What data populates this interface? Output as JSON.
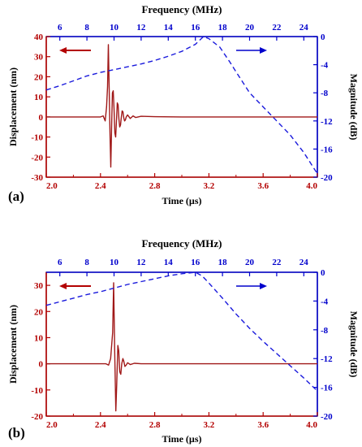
{
  "colors": {
    "time_axis": "#b30000",
    "frequency_axis": "#0000cc",
    "displacement_line": "#a01818",
    "magnitude_line": "#1a1adc",
    "frame": "#000000"
  },
  "chart_data": [
    {
      "type": "line",
      "panel_label": "(a)",
      "title": "",
      "xlabel": "Time (µs)",
      "x2label": "Frequency (MHz)",
      "ylabel": "Displacement (nm)",
      "y2label": "Magnitude (dB)",
      "xlim": [
        2.0,
        4.0
      ],
      "x2lim": [
        5,
        25
      ],
      "ylim": [
        -30,
        40
      ],
      "y2lim": [
        -20,
        0
      ],
      "x_ticks": [
        "2.0",
        "2.4",
        "2.8",
        "3.2",
        "3.6",
        "4.0"
      ],
      "x2_ticks": [
        "6",
        "8",
        "10",
        "12",
        "14",
        "16",
        "18",
        "20",
        "22",
        "24"
      ],
      "y_ticks": [
        "-30",
        "-20",
        "-10",
        "0",
        "10",
        "20",
        "30",
        "40"
      ],
      "y2_ticks": [
        "-20",
        "-16",
        "-12",
        "-8",
        "-4",
        "0"
      ],
      "legend_arrows": [
        "displacement → left axis (time)",
        "magnitude → right axis (frequency)"
      ],
      "series": [
        {
          "axis": "time/displacement",
          "x": [
            2.0,
            2.4,
            2.42,
            2.435,
            2.445,
            2.452,
            2.458,
            2.465,
            2.47,
            2.476,
            2.482,
            2.488,
            2.494,
            2.5,
            2.506,
            2.512,
            2.518,
            2.524,
            2.53,
            2.536,
            2.542,
            2.548,
            2.554,
            2.56,
            2.566,
            2.572,
            2.578,
            2.584,
            2.59,
            2.6,
            2.62,
            2.64,
            2.66,
            2.7,
            2.8,
            3.0,
            3.2,
            4.0
          ],
          "y": [
            0,
            0,
            0.5,
            -2,
            5,
            15,
            36,
            10,
            -8,
            -25,
            -5,
            12,
            13,
            4,
            -8,
            -10,
            -2,
            7,
            6,
            -1,
            -5,
            -4,
            0,
            3,
            2.5,
            -0.5,
            -2,
            -1.5,
            0,
            1,
            -0.8,
            0.5,
            -0.3,
            0.3,
            0.1,
            0,
            0,
            0
          ]
        },
        {
          "axis": "frequency/magnitude",
          "x": [
            5.0,
            6.0,
            7.0,
            8.0,
            9.0,
            10.0,
            11.0,
            12.0,
            13.0,
            14.0,
            15.0,
            16.0,
            16.6,
            17.0,
            17.8,
            18.5,
            19.0,
            20.0,
            21.0,
            22.0,
            23.0,
            24.0,
            25.0
          ],
          "y": [
            -7.6,
            -7.0,
            -6.3,
            -5.6,
            -5.1,
            -4.7,
            -4.3,
            -3.9,
            -3.4,
            -2.8,
            -2.1,
            -1.1,
            0.0,
            -0.3,
            -1.5,
            -3.5,
            -5.0,
            -8.0,
            -10.0,
            -12.0,
            -14.0,
            -16.5,
            -19.5
          ]
        }
      ]
    },
    {
      "type": "line",
      "panel_label": "(b)",
      "title": "",
      "xlabel": "Time (µs)",
      "x2label": "Frequency (MHz)",
      "ylabel": "Displacement (nm)",
      "y2label": "Magnitude (dB)",
      "xlim": [
        2.0,
        4.0
      ],
      "x2lim": [
        5,
        25
      ],
      "ylim": [
        -20,
        35
      ],
      "y2lim": [
        -20,
        0
      ],
      "x_ticks": [
        "2.0",
        "2.4",
        "2.8",
        "3.2",
        "3.6",
        "4.0"
      ],
      "x2_ticks": [
        "6",
        "8",
        "10",
        "12",
        "14",
        "16",
        "18",
        "20",
        "22",
        "24"
      ],
      "y_ticks": [
        "-20",
        "-10",
        "0",
        "10",
        "20",
        "30"
      ],
      "y2_ticks": [
        "-20",
        "-16",
        "-12",
        "-8",
        "-4",
        "0"
      ],
      "legend_arrows": [
        "displacement → left axis (time)",
        "magnitude → right axis (frequency)"
      ],
      "series": [
        {
          "axis": "time/displacement",
          "x": [
            2.0,
            2.44,
            2.46,
            2.475,
            2.49,
            2.497,
            2.505,
            2.513,
            2.52,
            2.528,
            2.535,
            2.542,
            2.55,
            2.557,
            2.565,
            2.572,
            2.58,
            2.59,
            2.6,
            2.62,
            2.65,
            2.7,
            2.8,
            4.0
          ],
          "y": [
            0,
            0,
            -0.5,
            2,
            12,
            31,
            5,
            -18,
            -8,
            7,
            5,
            -3,
            -4,
            0,
            2,
            1,
            -1,
            -0.5,
            0.4,
            -0.3,
            0.2,
            0,
            0,
            0
          ]
        },
        {
          "axis": "frequency/magnitude",
          "x": [
            5.0,
            6.0,
            7.0,
            8.0,
            9.0,
            10.0,
            11.0,
            12.0,
            13.0,
            14.0,
            15.0,
            15.5,
            16.0,
            16.5,
            17.0,
            18.0,
            19.0,
            20.0,
            21.0,
            22.0,
            23.0,
            24.0,
            25.0
          ],
          "y": [
            -4.6,
            -4.1,
            -3.6,
            -3.1,
            -2.7,
            -2.2,
            -1.7,
            -1.3,
            -0.9,
            -0.5,
            -0.2,
            -0.1,
            0.0,
            -0.5,
            -1.5,
            -3.6,
            -5.8,
            -7.8,
            -9.6,
            -11.3,
            -13.0,
            -14.7,
            -16.5
          ]
        }
      ]
    }
  ]
}
